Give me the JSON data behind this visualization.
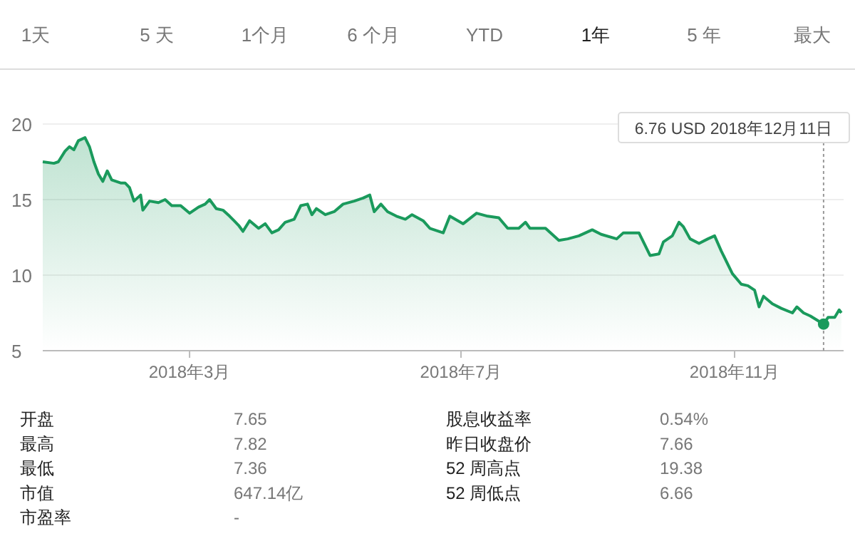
{
  "chart_data": {
    "type": "area",
    "color": "#1a9a5c",
    "grid": "y",
    "marker": "none",
    "line_style": "solid",
    "ref_lines": [
      {
        "axis": "x",
        "value": "2018-12-11",
        "label": "6.76 USD  2018年12月11日",
        "color": "#999999",
        "line_style": "dotted"
      }
    ],
    "x": [
      "2017-12-25",
      "2017-12-30",
      "2018-01-01",
      "2018-01-04",
      "2018-01-06",
      "2018-01-08",
      "2018-01-10",
      "2018-01-13",
      "2018-01-15",
      "2018-01-17",
      "2018-01-19",
      "2018-01-21",
      "2018-01-23",
      "2018-01-25",
      "2018-01-29",
      "2018-01-31",
      "2018-02-02",
      "2018-02-04",
      "2018-02-07",
      "2018-02-08",
      "2018-02-11",
      "2018-02-15",
      "2018-02-18",
      "2018-02-21",
      "2018-02-25",
      "2018-03-01",
      "2018-03-05",
      "2018-03-08",
      "2018-03-10",
      "2018-03-13",
      "2018-03-16",
      "2018-03-19",
      "2018-03-21",
      "2018-03-23",
      "2018-03-25",
      "2018-03-28",
      "2018-04-01",
      "2018-04-04",
      "2018-04-07",
      "2018-04-10",
      "2018-04-13",
      "2018-04-17",
      "2018-04-20",
      "2018-04-23",
      "2018-04-25",
      "2018-04-27",
      "2018-05-01",
      "2018-05-05",
      "2018-05-09",
      "2018-05-14",
      "2018-05-18",
      "2018-05-21",
      "2018-05-23",
      "2018-05-26",
      "2018-05-29",
      "2018-06-02",
      "2018-06-06",
      "2018-06-09",
      "2018-06-14",
      "2018-06-17",
      "2018-06-23",
      "2018-06-26",
      "2018-07-02",
      "2018-07-08",
      "2018-07-13",
      "2018-07-18",
      "2018-07-22",
      "2018-07-27",
      "2018-07-30",
      "2018-08-01",
      "2018-08-08",
      "2018-08-14",
      "2018-08-18",
      "2018-08-23",
      "2018-08-29",
      "2018-09-02",
      "2018-09-09",
      "2018-09-12",
      "2018-09-19",
      "2018-09-24",
      "2018-09-28",
      "2018-09-30",
      "2018-10-04",
      "2018-10-07",
      "2018-10-09",
      "2018-10-12",
      "2018-10-16",
      "2018-10-20",
      "2018-10-23",
      "2018-10-26",
      "2018-10-31",
      "2018-11-04",
      "2018-11-07",
      "2018-11-10",
      "2018-11-12",
      "2018-11-14",
      "2018-11-18",
      "2018-11-22",
      "2018-11-27",
      "2018-11-29",
      "2018-12-02",
      "2018-12-05",
      "2018-12-11",
      "2018-12-13",
      "2018-12-16",
      "2018-12-18",
      "2018-12-19"
    ],
    "values": [
      17.5,
      17.4,
      17.5,
      18.2,
      18.5,
      18.3,
      18.9,
      19.1,
      18.5,
      17.5,
      16.7,
      16.2,
      16.9,
      16.3,
      16.1,
      16.1,
      15.8,
      14.9,
      15.3,
      14.3,
      14.9,
      14.8,
      15.0,
      14.6,
      14.6,
      14.1,
      14.5,
      14.7,
      15.0,
      14.4,
      14.3,
      13.9,
      13.6,
      13.3,
      12.9,
      13.6,
      13.1,
      13.4,
      12.8,
      13.0,
      13.5,
      13.7,
      14.6,
      14.7,
      14.0,
      14.4,
      14.0,
      14.2,
      14.7,
      14.9,
      15.1,
      15.3,
      14.2,
      14.7,
      14.2,
      13.9,
      13.7,
      14.0,
      13.6,
      13.1,
      12.8,
      13.9,
      13.4,
      14.1,
      13.9,
      13.8,
      13.1,
      13.1,
      13.5,
      13.1,
      13.1,
      12.3,
      12.4,
      12.6,
      13.0,
      12.7,
      12.4,
      12.8,
      12.8,
      11.3,
      11.4,
      12.2,
      12.6,
      13.5,
      13.2,
      12.4,
      12.1,
      12.4,
      12.6,
      11.6,
      10.1,
      9.4,
      9.3,
      9.0,
      7.9,
      8.6,
      8.1,
      7.8,
      7.5,
      7.9,
      7.5,
      7.3,
      6.76,
      7.2,
      7.2,
      7.7,
      7.5
    ],
    "xlim": [
      "2017-12-25",
      "2018-12-20"
    ],
    "xticks": [
      {
        "value": "2018-03",
        "label": "2018年3月"
      },
      {
        "value": "2018-07",
        "label": "2018年7月"
      },
      {
        "value": "2018-11",
        "label": "2018年11月"
      }
    ],
    "ylim": [
      5,
      20
    ],
    "yticks": [
      5,
      10,
      15,
      20
    ],
    "annotations": [
      "1天",
      "5 天",
      "1个月",
      "6 个月",
      "YTD",
      "1年",
      "5 年",
      "最大",
      "开盘",
      "7.65",
      "最高",
      "7.82",
      "最低",
      "7.36",
      "市值",
      "647.14亿",
      "市盈率",
      "-",
      "股息收益率",
      "0.54%",
      "昨日收盘价",
      "7.66",
      "52 周高点",
      "19.38",
      "52 周低点",
      "6.66"
    ]
  }
}
